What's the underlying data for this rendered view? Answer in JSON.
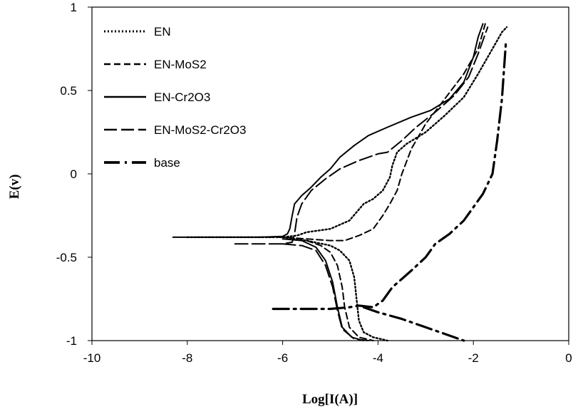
{
  "chart_data": {
    "type": "line",
    "title": "",
    "xlabel": "Log[I(A)]",
    "ylabel": "E(v)",
    "xlim": [
      -10,
      0
    ],
    "ylim": [
      -1,
      1
    ],
    "x_ticks": [
      -10,
      -8,
      -6,
      -4,
      -2,
      0
    ],
    "x_tick_labels": [
      "-10",
      "-8",
      "-6",
      "-4",
      "-2",
      "0"
    ],
    "y_ticks": [
      -1,
      -0.5,
      0,
      0.5,
      1
    ],
    "y_tick_labels": [
      "-1",
      "-0.5",
      "0",
      "0.5",
      "1"
    ],
    "grid": false,
    "legend_position": "top-left",
    "series": [
      {
        "name": "EN",
        "dash": "dotted",
        "points": [
          [
            -8.0,
            -0.38
          ],
          [
            -6.5,
            -0.38
          ],
          [
            -6.0,
            -0.38
          ],
          [
            -5.7,
            -0.37
          ],
          [
            -5.5,
            -0.35
          ],
          [
            -5.0,
            -0.33
          ],
          [
            -4.6,
            -0.28
          ],
          [
            -4.3,
            -0.18
          ],
          [
            -4.1,
            -0.15
          ],
          [
            -3.9,
            -0.1
          ],
          [
            -3.75,
            -0.02
          ],
          [
            -3.7,
            0.05
          ],
          [
            -3.6,
            0.13
          ],
          [
            -3.4,
            0.18
          ],
          [
            -3.0,
            0.25
          ],
          [
            -2.6,
            0.35
          ],
          [
            -2.2,
            0.46
          ],
          [
            -1.9,
            0.6
          ],
          [
            -1.6,
            0.75
          ],
          [
            -1.4,
            0.85
          ],
          [
            -1.3,
            0.88
          ]
        ]
      },
      {
        "name": "EN-MoS2",
        "dash": "dashed",
        "points": [
          [
            -7.8,
            -0.38
          ],
          [
            -6.5,
            -0.38
          ],
          [
            -6.0,
            -0.38
          ],
          [
            -5.5,
            -0.39
          ],
          [
            -5.0,
            -0.4
          ],
          [
            -4.7,
            -0.4
          ],
          [
            -4.4,
            -0.37
          ],
          [
            -4.1,
            -0.33
          ],
          [
            -3.9,
            -0.25
          ],
          [
            -3.75,
            -0.18
          ],
          [
            -3.6,
            -0.1
          ],
          [
            -3.5,
            0.0
          ],
          [
            -3.3,
            0.15
          ],
          [
            -3.0,
            0.3
          ],
          [
            -2.6,
            0.45
          ],
          [
            -2.2,
            0.6
          ],
          [
            -1.9,
            0.75
          ],
          [
            -1.75,
            0.9
          ]
        ]
      },
      {
        "name": "EN-Cr2O3",
        "dash": "solid",
        "points": [
          [
            -8.3,
            -0.38
          ],
          [
            -7.5,
            -0.38
          ],
          [
            -6.5,
            -0.38
          ],
          [
            -6.0,
            -0.375
          ],
          [
            -5.9,
            -0.36
          ],
          [
            -5.85,
            -0.33
          ],
          [
            -5.8,
            -0.25
          ],
          [
            -5.75,
            -0.18
          ],
          [
            -5.6,
            -0.13
          ],
          [
            -5.4,
            -0.08
          ],
          [
            -5.2,
            -0.02
          ],
          [
            -5.0,
            0.03
          ],
          [
            -4.8,
            0.1
          ],
          [
            -4.5,
            0.17
          ],
          [
            -4.2,
            0.23
          ],
          [
            -3.8,
            0.28
          ],
          [
            -3.3,
            0.34
          ],
          [
            -2.9,
            0.38
          ],
          [
            -2.5,
            0.45
          ],
          [
            -2.2,
            0.55
          ],
          [
            -2.0,
            0.7
          ],
          [
            -1.9,
            0.82
          ],
          [
            -1.8,
            0.9
          ]
        ]
      },
      {
        "name": "EN-MoS2-Cr2O3",
        "dash": "long-dash",
        "points": [
          [
            -7.0,
            -0.42
          ],
          [
            -6.5,
            -0.42
          ],
          [
            -6.0,
            -0.42
          ],
          [
            -5.8,
            -0.41
          ],
          [
            -5.75,
            -0.36
          ],
          [
            -5.7,
            -0.26
          ],
          [
            -5.6,
            -0.18
          ],
          [
            -5.4,
            -0.1
          ],
          [
            -5.1,
            -0.03
          ],
          [
            -4.8,
            0.03
          ],
          [
            -4.4,
            0.08
          ],
          [
            -4.0,
            0.12
          ],
          [
            -3.8,
            0.13
          ],
          [
            -3.5,
            0.2
          ],
          [
            -3.2,
            0.28
          ],
          [
            -2.8,
            0.37
          ],
          [
            -2.4,
            0.47
          ],
          [
            -2.1,
            0.58
          ],
          [
            -1.9,
            0.72
          ],
          [
            -1.7,
            0.88
          ]
        ]
      },
      {
        "name": "base",
        "dash": "dash-dot",
        "points": [
          [
            -6.2,
            -0.81
          ],
          [
            -5.5,
            -0.81
          ],
          [
            -5.0,
            -0.81
          ],
          [
            -4.6,
            -0.8
          ],
          [
            -4.4,
            -0.79
          ],
          [
            -4.1,
            -0.8
          ],
          [
            -3.9,
            -0.76
          ],
          [
            -3.7,
            -0.68
          ],
          [
            -3.5,
            -0.63
          ],
          [
            -3.3,
            -0.58
          ],
          [
            -3.0,
            -0.5
          ],
          [
            -2.8,
            -0.42
          ],
          [
            -2.5,
            -0.36
          ],
          [
            -2.2,
            -0.28
          ],
          [
            -2.0,
            -0.2
          ],
          [
            -1.8,
            -0.12
          ],
          [
            -1.6,
            0.0
          ],
          [
            -1.5,
            0.2
          ],
          [
            -1.4,
            0.45
          ],
          [
            -1.32,
            0.78
          ]
        ]
      },
      {
        "name": "",
        "note_free": true,
        "dash": "dotted",
        "points": [
          [
            -6.0,
            -0.38
          ],
          [
            -5.5,
            -0.4
          ],
          [
            -5.0,
            -0.43
          ],
          [
            -4.8,
            -0.46
          ],
          [
            -4.6,
            -0.52
          ],
          [
            -4.5,
            -0.62
          ],
          [
            -4.45,
            -0.75
          ],
          [
            -4.4,
            -0.88
          ],
          [
            -4.3,
            -0.95
          ],
          [
            -4.1,
            -0.98
          ],
          [
            -3.8,
            -1.0
          ]
        ]
      },
      {
        "name": "",
        "dash": "dashed",
        "points": [
          [
            -5.5,
            -0.4
          ],
          [
            -5.2,
            -0.43
          ],
          [
            -5.0,
            -0.47
          ],
          [
            -4.85,
            -0.55
          ],
          [
            -4.75,
            -0.68
          ],
          [
            -4.7,
            -0.8
          ],
          [
            -4.6,
            -0.92
          ],
          [
            -4.4,
            -0.98
          ],
          [
            -4.1,
            -1.0
          ]
        ]
      },
      {
        "name": "",
        "dash": "solid",
        "points": [
          [
            -6.0,
            -0.39
          ],
          [
            -5.6,
            -0.4
          ],
          [
            -5.3,
            -0.44
          ],
          [
            -5.1,
            -0.52
          ],
          [
            -4.95,
            -0.65
          ],
          [
            -4.85,
            -0.8
          ],
          [
            -4.75,
            -0.92
          ],
          [
            -4.55,
            -0.98
          ],
          [
            -4.3,
            -1.0
          ]
        ]
      },
      {
        "name": "",
        "dash": "long-dash",
        "points": [
          [
            -6.0,
            -0.42
          ],
          [
            -5.6,
            -0.43
          ],
          [
            -5.3,
            -0.46
          ],
          [
            -5.1,
            -0.55
          ],
          [
            -4.95,
            -0.68
          ],
          [
            -4.85,
            -0.82
          ],
          [
            -4.75,
            -0.93
          ],
          [
            -4.5,
            -0.99
          ],
          [
            -4.2,
            -1.0
          ]
        ]
      },
      {
        "name": "",
        "dash": "dash-dot",
        "points": [
          [
            -4.3,
            -0.8
          ],
          [
            -4.0,
            -0.83
          ],
          [
            -3.5,
            -0.87
          ],
          [
            -3.0,
            -0.92
          ],
          [
            -2.6,
            -0.96
          ],
          [
            -2.2,
            -1.0
          ]
        ]
      }
    ]
  }
}
